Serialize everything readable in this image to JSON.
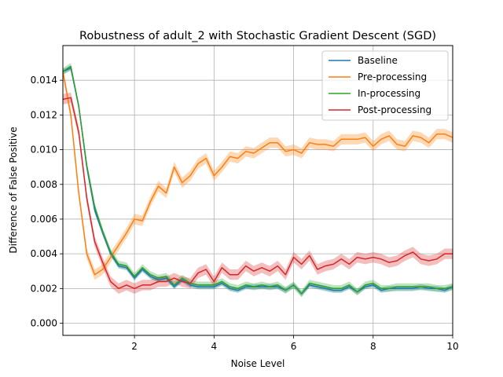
{
  "chart_data": {
    "type": "line",
    "title": "Robustness of adult_2 with Stochastic Gradient Descent (SGD)",
    "xlabel": "Noise Level",
    "ylabel": "Difference of False Positive",
    "xlim": [
      0.2,
      10
    ],
    "ylim": [
      -0.0007,
      0.016
    ],
    "xticks": [
      "2",
      "4",
      "6",
      "8",
      "10"
    ],
    "yticks": [
      "0.000",
      "0.002",
      "0.004",
      "0.006",
      "0.008",
      "0.010",
      "0.012",
      "0.014"
    ],
    "xtick_values": [
      2,
      4,
      6,
      8,
      10
    ],
    "ytick_values": [
      0,
      0.002,
      0.004,
      0.006,
      0.008,
      0.01,
      0.012,
      0.014
    ],
    "grid": true,
    "legend_position": "top-right",
    "x": [
      0.2,
      0.4,
      0.6,
      0.8,
      1.0,
      1.2,
      1.4,
      1.6,
      1.8,
      2.0,
      2.2,
      2.4,
      2.6,
      2.8,
      3.0,
      3.2,
      3.4,
      3.6,
      3.8,
      4.0,
      4.2,
      4.4,
      4.6,
      4.8,
      5.0,
      5.2,
      5.4,
      5.6,
      5.8,
      6.0,
      6.2,
      6.4,
      6.6,
      6.8,
      7.0,
      7.2,
      7.4,
      7.6,
      7.8,
      8.0,
      8.2,
      8.4,
      8.6,
      8.8,
      9.0,
      9.2,
      9.4,
      9.6,
      9.8,
      10.0
    ],
    "series": [
      {
        "name": "Baseline",
        "color": "#1f77b4",
        "values": [
          0.0145,
          0.0147,
          0.0125,
          0.009,
          0.0065,
          0.0052,
          0.004,
          0.0033,
          0.0032,
          0.0026,
          0.0031,
          0.0027,
          0.0025,
          0.0026,
          0.0021,
          0.0025,
          0.0022,
          0.0021,
          0.0021,
          0.0021,
          0.0023,
          0.002,
          0.0019,
          0.0021,
          0.0021,
          0.0021,
          0.0021,
          0.0021,
          0.0019,
          0.0022,
          0.0017,
          0.0022,
          0.0021,
          0.002,
          0.0019,
          0.0019,
          0.0021,
          0.0018,
          0.0021,
          0.0022,
          0.0019,
          0.002,
          0.002,
          0.002,
          0.002,
          0.0021,
          0.002,
          0.002,
          0.0019,
          0.0021
        ],
        "band": 0.00015
      },
      {
        "name": "Pre-processing",
        "color": "#ff7f0e",
        "values": [
          0.0145,
          0.012,
          0.0075,
          0.004,
          0.0028,
          0.0031,
          0.0038,
          0.0045,
          0.0052,
          0.006,
          0.0059,
          0.007,
          0.0079,
          0.0075,
          0.009,
          0.0081,
          0.0085,
          0.0092,
          0.0095,
          0.0085,
          0.009,
          0.0096,
          0.0095,
          0.0099,
          0.0098,
          0.0101,
          0.0104,
          0.0104,
          0.0099,
          0.01,
          0.0098,
          0.0104,
          0.0103,
          0.0103,
          0.0102,
          0.0106,
          0.0106,
          0.0106,
          0.0107,
          0.0102,
          0.0106,
          0.0108,
          0.0103,
          0.0102,
          0.0108,
          0.0107,
          0.0104,
          0.0109,
          0.0109,
          0.0107
        ],
        "band": 0.0003
      },
      {
        "name": "In-processing",
        "color": "#2ca02c",
        "values": [
          0.0145,
          0.0148,
          0.0125,
          0.0091,
          0.0067,
          0.0053,
          0.0041,
          0.0034,
          0.0033,
          0.0027,
          0.0032,
          0.0028,
          0.0026,
          0.0027,
          0.0022,
          0.0026,
          0.0023,
          0.0022,
          0.0022,
          0.0022,
          0.0024,
          0.0021,
          0.002,
          0.0022,
          0.0021,
          0.0022,
          0.0021,
          0.0022,
          0.0019,
          0.0022,
          0.0017,
          0.0023,
          0.0022,
          0.0021,
          0.002,
          0.002,
          0.0022,
          0.0018,
          0.0022,
          0.0023,
          0.002,
          0.002,
          0.0021,
          0.0021,
          0.0021,
          0.0021,
          0.0021,
          0.002,
          0.002,
          0.0021
        ],
        "band": 0.0002
      },
      {
        "name": "Post-processing",
        "color": "#d62728",
        "values": [
          0.0129,
          0.013,
          0.011,
          0.0072,
          0.0047,
          0.0035,
          0.0024,
          0.002,
          0.0022,
          0.002,
          0.0022,
          0.0022,
          0.0024,
          0.0024,
          0.0026,
          0.0024,
          0.0023,
          0.0029,
          0.0031,
          0.0024,
          0.0032,
          0.0028,
          0.0028,
          0.0033,
          0.003,
          0.0032,
          0.003,
          0.0033,
          0.0028,
          0.0038,
          0.0034,
          0.0039,
          0.0031,
          0.0033,
          0.0034,
          0.0037,
          0.0034,
          0.0038,
          0.0037,
          0.0038,
          0.0037,
          0.0035,
          0.0036,
          0.0039,
          0.0041,
          0.0037,
          0.0036,
          0.0037,
          0.004,
          0.004
        ],
        "band": 0.0003
      }
    ]
  }
}
